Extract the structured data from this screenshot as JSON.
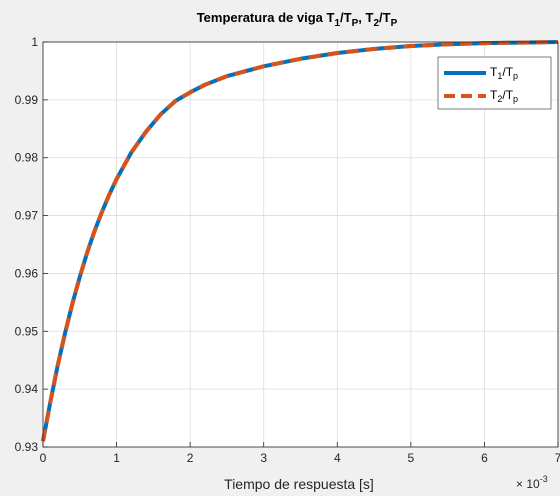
{
  "chart_data": {
    "type": "line",
    "title_parts": {
      "prefix": "Temperatura de viga ",
      "a": "T",
      "a_sub": "1",
      "slash1": "/",
      "b": "T",
      "b_sub": "P",
      "comma": ", ",
      "c": "T",
      "c_sub": "2",
      "slash2": "/",
      "d": "T",
      "d_sub": "P"
    },
    "xlabel": "Tiempo de respuesta [s]",
    "x_exponent_base": "× 10",
    "x_exponent": "-3",
    "x_scale": 0.001,
    "xlim": [
      0,
      0.007
    ],
    "ylim": [
      0.93,
      1.0
    ],
    "x_ticks": [
      0,
      0.001,
      0.002,
      0.003,
      0.004,
      0.005,
      0.006,
      0.007
    ],
    "x_tick_labels": [
      "0",
      "1",
      "2",
      "3",
      "4",
      "5",
      "6",
      "7"
    ],
    "y_ticks": [
      0.93,
      0.94,
      0.95,
      0.96,
      0.97,
      0.98,
      0.99,
      1.0
    ],
    "y_tick_labels": [
      "0.93",
      "0.94",
      "0.95",
      "0.96",
      "0.97",
      "0.98",
      "0.99",
      "1"
    ],
    "grid": true,
    "legend_position": "top-right",
    "x": [
      0,
      0.0001,
      0.0002,
      0.0003,
      0.0004,
      0.0005,
      0.0006,
      0.0007,
      0.0008,
      0.0009,
      0.001,
      0.0012,
      0.0014,
      0.0016,
      0.0018,
      0.002,
      0.0022,
      0.0025,
      0.003,
      0.0035,
      0.004,
      0.0045,
      0.005,
      0.0055,
      0.006,
      0.0065,
      0.007
    ],
    "series": [
      {
        "name_main": "T",
        "name_sub": "1",
        "name_slash": "/",
        "name_main2": "T",
        "name_sub2": "p",
        "color": "#0072BD",
        "dash": "solid",
        "values": [
          0.931,
          0.9378,
          0.9441,
          0.9497,
          0.9548,
          0.9594,
          0.9636,
          0.9673,
          0.9706,
          0.9736,
          0.9763,
          0.9809,
          0.9845,
          0.9875,
          0.9898,
          0.9913,
          0.9926,
          0.9941,
          0.9958,
          0.9971,
          0.9981,
          0.9988,
          0.9993,
          0.9996,
          0.9998,
          0.9999,
          1.0
        ]
      },
      {
        "name_main": "T",
        "name_sub": "2",
        "name_slash": "/",
        "name_main2": "T",
        "name_sub2": "p",
        "color": "#D95319",
        "dash": "dashed",
        "values": [
          0.931,
          0.9378,
          0.9441,
          0.9497,
          0.9548,
          0.9594,
          0.9636,
          0.9673,
          0.9706,
          0.9736,
          0.9763,
          0.9809,
          0.9845,
          0.9875,
          0.9898,
          0.9913,
          0.9926,
          0.9941,
          0.9958,
          0.9971,
          0.9981,
          0.9988,
          0.9993,
          0.9996,
          0.9998,
          0.9999,
          1.0
        ]
      }
    ]
  }
}
